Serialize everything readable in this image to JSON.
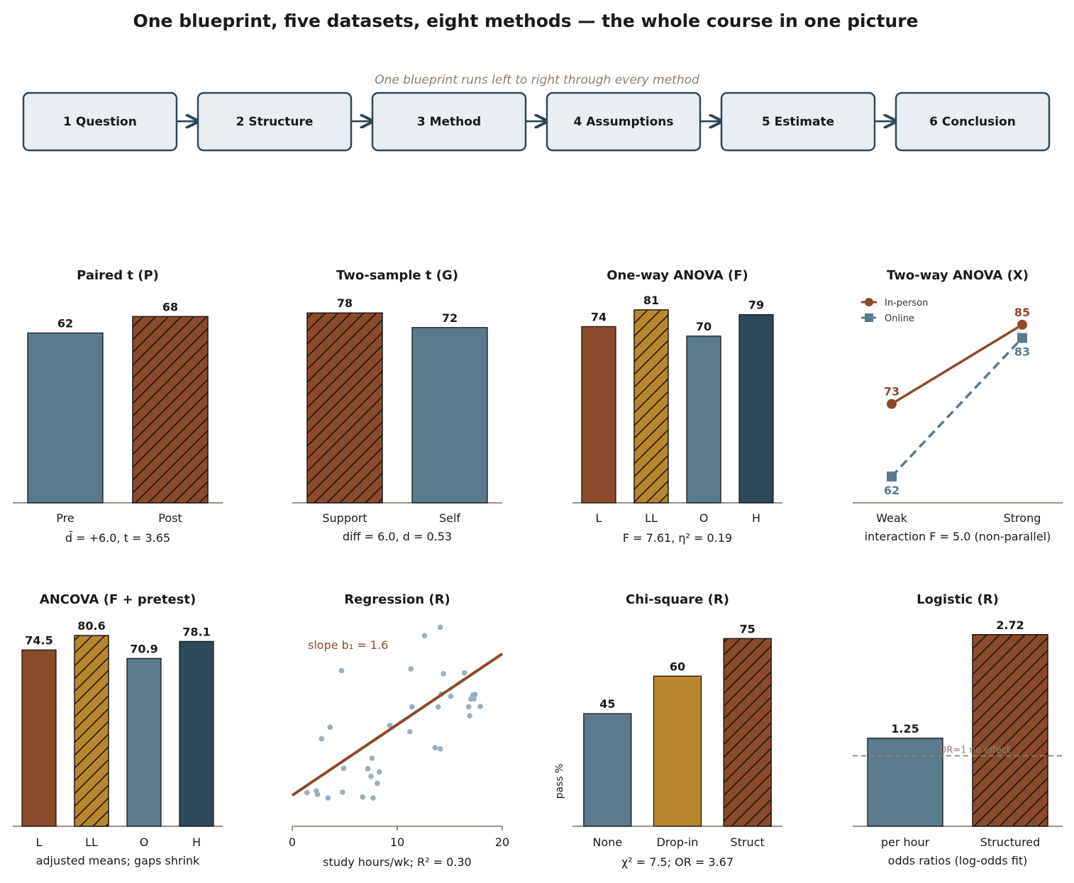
{
  "title": "One blueprint, five datasets, eight methods — the whole course in one picture",
  "blueprint": {
    "caption": "One blueprint runs left to right through every method",
    "steps": [
      "1 Question",
      "2 Structure",
      "3 Method",
      "4 Assumptions",
      "5 Estimate",
      "6 Conclusion"
    ]
  },
  "colors": {
    "rust": "#8b4a2b",
    "slate": "#5b7a8c",
    "ochre": "#b8862e",
    "navy": "#2e4a5a",
    "point": "#9aafbf",
    "axis": "#7a7060",
    "box_fill": "#e8eef1",
    "box_stroke": "#2f4858",
    "muted": "#8c8070"
  },
  "chart_data": [
    {
      "id": "paired",
      "type": "bar",
      "title": "Paired t  (P)",
      "categories": [
        "Pre",
        "Post"
      ],
      "values": [
        62,
        68
      ],
      "value_labels": [
        "62",
        "68"
      ],
      "ylim": [
        0,
        80
      ],
      "colors": [
        "slate",
        "rust"
      ],
      "hatched": [
        false,
        true
      ],
      "caption": "d̄ = +6.0,  t = 3.65"
    },
    {
      "id": "twosample",
      "type": "bar",
      "title": "Two-sample t  (G)",
      "categories": [
        "Support",
        "Self"
      ],
      "values": [
        78,
        72
      ],
      "value_labels": [
        "78",
        "72"
      ],
      "ylim": [
        0,
        90
      ],
      "colors": [
        "rust",
        "slate"
      ],
      "hatched": [
        true,
        false
      ],
      "caption": "diff  = 6.0,  d = 0.53"
    },
    {
      "id": "oneway",
      "type": "bar",
      "title": "One-way ANOVA  (F)",
      "categories": [
        "L",
        "LL",
        "O",
        "H"
      ],
      "values": [
        74,
        81,
        70,
        79
      ],
      "value_labels": [
        "74",
        "81",
        "70",
        "79"
      ],
      "ylim": [
        0,
        92
      ],
      "colors": [
        "rust",
        "ochre",
        "slate",
        "navy"
      ],
      "hatched": [
        false,
        true,
        false,
        false
      ],
      "caption": "F = 7.61,  η² = 0.19"
    },
    {
      "id": "twoway",
      "type": "line",
      "title": "Two-way ANOVA  (X)",
      "categories": [
        "Weak",
        "Strong"
      ],
      "series": [
        {
          "name": "In-person",
          "values": [
            73,
            85
          ],
          "value_labels": [
            "73",
            "85"
          ],
          "color": "rust",
          "marker": "circle",
          "dashed": false
        },
        {
          "name": "Online",
          "values": [
            62,
            83
          ],
          "value_labels": [
            "62",
            "83"
          ],
          "color": "slate",
          "marker": "square",
          "dashed": true
        }
      ],
      "ylim": [
        58,
        88
      ],
      "legend": "top-left",
      "caption": "interaction F = 5.0 (non-parallel)"
    },
    {
      "id": "ancova",
      "type": "bar",
      "title": "ANCOVA  (F + pretest)",
      "categories": [
        "L",
        "LL",
        "O",
        "H"
      ],
      "values": [
        74.5,
        80.6,
        70.9,
        78.1
      ],
      "value_labels": [
        "74.5",
        "80.6",
        "70.9",
        "78.1"
      ],
      "ylim": [
        0,
        92
      ],
      "colors": [
        "rust",
        "ochre",
        "slate",
        "navy"
      ],
      "hatched": [
        false,
        true,
        false,
        false
      ],
      "caption": "adjusted means; gaps shrink"
    },
    {
      "id": "regression",
      "type": "scatter",
      "title": "Regression  (R)",
      "x": [
        1.4,
        2.3,
        2.4,
        2.8,
        3.4,
        3.6,
        4.7,
        4.8,
        4.9,
        6.7,
        7.2,
        7.5,
        7.6,
        7.7,
        8.1,
        8.3,
        9.3,
        11.2,
        11.3,
        11.4,
        12.6,
        13.6,
        13.9,
        14.1,
        14.2,
        14.1,
        15.1,
        14.4,
        16.4,
        16.8,
        16.9,
        17.0,
        17.3,
        17.4,
        17.2,
        17.9
      ],
      "y": [
        52.6,
        53.0,
        52.2,
        64.8,
        51.4,
        67.4,
        80.2,
        52.7,
        58.1,
        51.6,
        58.0,
        56.3,
        60.4,
        51.4,
        54.7,
        57.3,
        67.8,
        66.4,
        80.6,
        72.0,
        88.1,
        62.8,
        72.0,
        62.5,
        74.9,
        90.0,
        74.4,
        79.5,
        79.7,
        72.0,
        70.0,
        73.8,
        73.8,
        74.8,
        74.6,
        72.1
      ],
      "fit": {
        "intercept": 52.0,
        "slope": 1.6
      },
      "xlim": [
        0,
        20
      ],
      "ylim": [
        45,
        92
      ],
      "xticks": [
        0,
        10,
        20
      ],
      "annotation": "slope b₁ = 1.6",
      "caption": "study hours/wk;  R² = 0.30"
    },
    {
      "id": "chisquare",
      "type": "bar",
      "title": "Chi-square  (R)",
      "categories": [
        "None",
        "Drop-in",
        "Struct"
      ],
      "values": [
        45,
        60,
        75
      ],
      "value_labels": [
        "45",
        "60",
        "75"
      ],
      "ylim": [
        0,
        87
      ],
      "ylabel": "pass %",
      "colors": [
        "slate",
        "ochre",
        "rust"
      ],
      "hatched": [
        false,
        false,
        true
      ],
      "caption": "χ² = 7.5; OR  = 3.67"
    },
    {
      "id": "logistic",
      "type": "bar",
      "title": "Logistic  (R)",
      "categories": [
        "per hour",
        "Structured"
      ],
      "values": [
        1.25,
        2.72
      ],
      "value_labels": [
        "1.25",
        "2.72"
      ],
      "ylim": [
        0,
        3.09
      ],
      "reference": {
        "value": 1.0,
        "label": "OR=1 no effect"
      },
      "colors": [
        "slate",
        "rust"
      ],
      "hatched": [
        false,
        true
      ],
      "caption": "odds ratios (log-odds fit)"
    }
  ]
}
